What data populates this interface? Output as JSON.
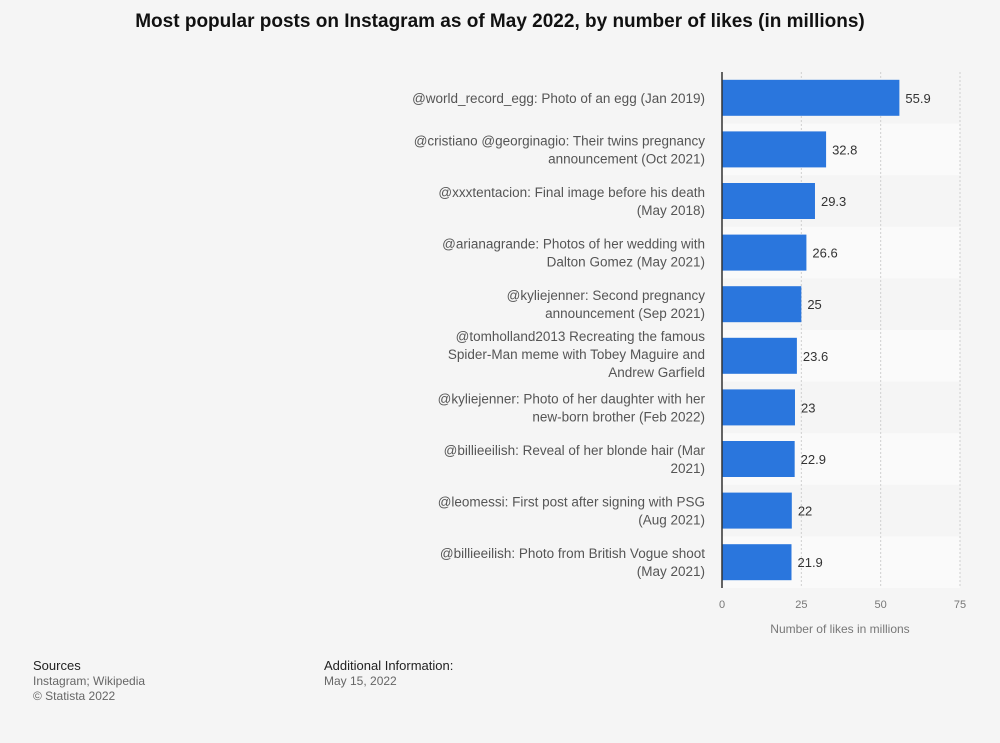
{
  "chart_data": {
    "type": "bar",
    "orientation": "horizontal",
    "title": "Most popular posts on Instagram as of May 2022, by number of likes (in millions)",
    "xlabel": "Number of likes in millions",
    "ylabel": "",
    "xlim": [
      0,
      75
    ],
    "ticks": [
      0,
      25,
      50,
      75
    ],
    "grid": true,
    "bar_color": "#2a76dd",
    "categories": [
      [
        "@world_record_egg: Photo of an egg (Jan 2019)"
      ],
      [
        "@cristiano @georginagio: Their twins pregnancy",
        "announcement (Oct 2021)"
      ],
      [
        "@xxxtentacion: Final image before his death",
        "(May 2018)"
      ],
      [
        "@arianagrande: Photos of her wedding with",
        "Dalton Gomez (May 2021)"
      ],
      [
        "@kyliejenner: Second pregnancy",
        "announcement (Sep 2021)"
      ],
      [
        "@tomholland2013 Recreating the famous",
        "Spider-Man meme with Tobey Maguire and",
        "Andrew Garfield"
      ],
      [
        "@kyliejenner: Photo of her daughter with her",
        "new-born brother (Feb 2022)"
      ],
      [
        "@billieeilish: Reveal of her blonde hair (Mar",
        "2021)"
      ],
      [
        "@leomessi: First post after signing with PSG",
        "(Aug 2021)"
      ],
      [
        "@billieeilish: Photo from British Vogue shoot",
        "(May 2021)"
      ]
    ],
    "values": [
      55.9,
      32.8,
      29.3,
      26.6,
      25,
      23.6,
      23,
      22.9,
      22,
      21.9
    ]
  },
  "footer": {
    "sources_heading": "Sources",
    "sources_line1": "Instagram; Wikipedia",
    "sources_line2": "© Statista 2022",
    "info_heading": "Additional Information:",
    "info_line1": "May 15, 2022"
  }
}
